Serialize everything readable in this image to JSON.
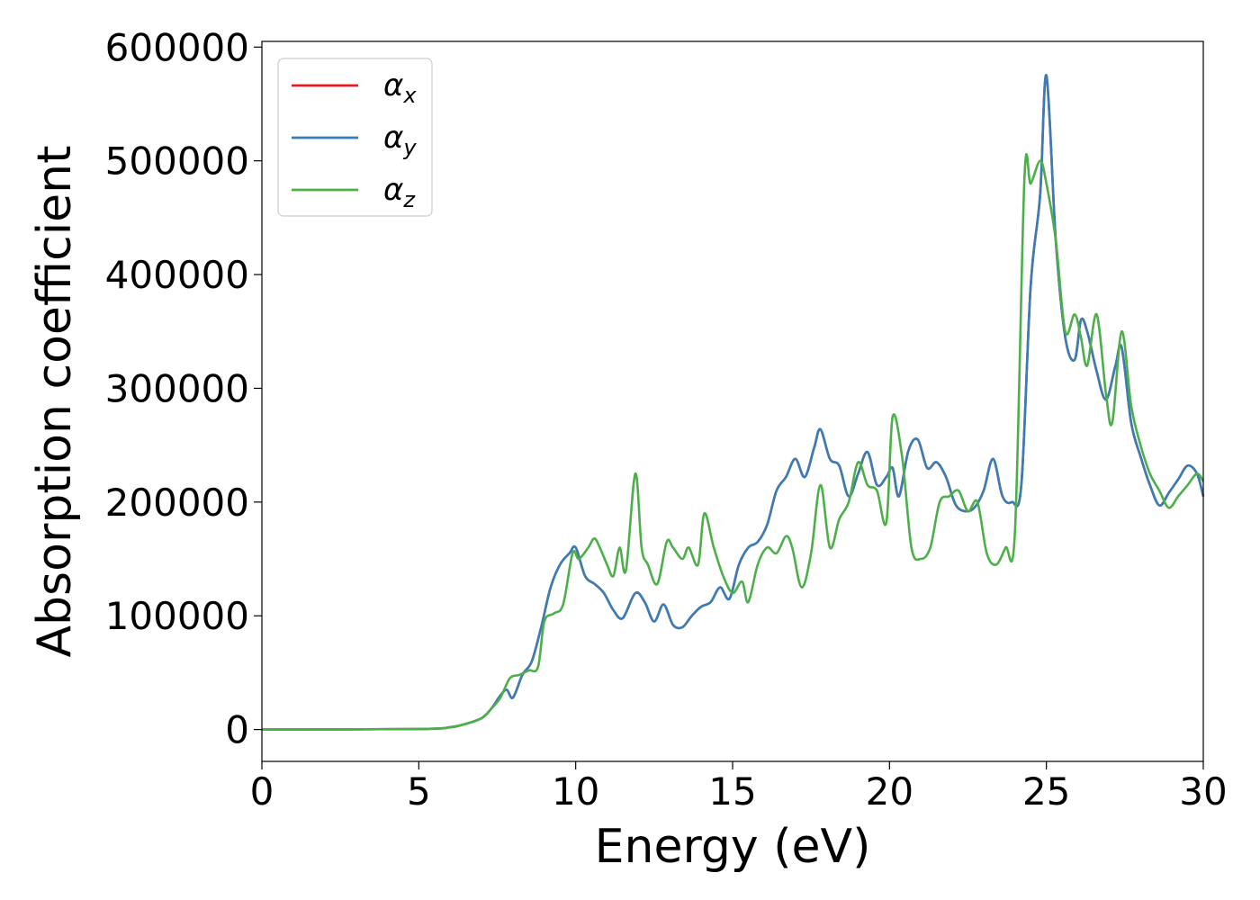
{
  "chart_data": {
    "type": "line",
    "xlabel": "Energy (eV)",
    "ylabel": "Absorption coefficient",
    "xlim": [
      0,
      30
    ],
    "ylim": [
      -28000,
      605000
    ],
    "xticks": [
      0,
      5,
      10,
      15,
      20,
      25,
      30
    ],
    "yticks": [
      0,
      100000,
      200000,
      300000,
      400000,
      500000,
      600000
    ],
    "grid": false,
    "legend_position": "top-left",
    "series": [
      {
        "name": "α_x",
        "legend_base": "α",
        "legend_sub": "x",
        "color": "#e41a1c",
        "x": [
          0,
          5,
          6,
          6.5,
          7,
          7.3,
          7.6,
          7.8,
          8.0,
          8.3,
          8.6,
          8.9,
          9.2,
          9.5,
          9.8,
          10.0,
          10.3,
          10.6,
          10.9,
          11.2,
          11.5,
          11.9,
          12.2,
          12.5,
          12.8,
          13.1,
          13.4,
          13.7,
          14.0,
          14.3,
          14.6,
          14.9,
          15.2,
          15.5,
          15.8,
          16.1,
          16.4,
          16.7,
          17.0,
          17.3,
          17.6,
          17.8,
          18.1,
          18.4,
          18.7,
          19.0,
          19.3,
          19.6,
          19.9,
          20.1,
          20.3,
          20.6,
          20.9,
          21.2,
          21.5,
          21.8,
          22.1,
          22.4,
          22.7,
          23.0,
          23.3,
          23.6,
          23.9,
          24.2,
          24.5,
          24.8,
          25.0,
          25.3,
          25.6,
          25.9,
          26.1,
          26.3,
          26.6,
          26.9,
          27.2,
          27.4,
          27.7,
          28.0,
          28.3,
          28.6,
          28.9,
          29.2,
          29.5,
          29.8,
          30.0
        ],
        "values": [
          0,
          500,
          2000,
          5000,
          10000,
          18000,
          30000,
          35000,
          28000,
          48000,
          60000,
          90000,
          125000,
          145000,
          155000,
          160000,
          135000,
          128000,
          120000,
          105000,
          98000,
          120000,
          112000,
          95000,
          110000,
          92000,
          90000,
          100000,
          108000,
          112000,
          125000,
          115000,
          145000,
          160000,
          165000,
          180000,
          210000,
          222000,
          238000,
          222000,
          248000,
          264000,
          238000,
          232000,
          205000,
          225000,
          244000,
          215000,
          222000,
          230000,
          205000,
          245000,
          255000,
          230000,
          235000,
          222000,
          198000,
          192000,
          195000,
          210000,
          238000,
          205000,
          200000,
          215000,
          390000,
          470000,
          575000,
          430000,
          345000,
          325000,
          360000,
          350000,
          315000,
          290000,
          320000,
          336000,
          270000,
          240000,
          215000,
          197000,
          208000,
          220000,
          232000,
          225000,
          205000
        ]
      },
      {
        "name": "α_y",
        "legend_base": "α",
        "legend_sub": "y",
        "color": "#377eb8",
        "x": [
          0,
          5,
          6,
          6.5,
          7,
          7.3,
          7.6,
          7.8,
          8.0,
          8.3,
          8.6,
          8.9,
          9.2,
          9.5,
          9.8,
          10.0,
          10.3,
          10.6,
          10.9,
          11.2,
          11.5,
          11.9,
          12.2,
          12.5,
          12.8,
          13.1,
          13.4,
          13.7,
          14.0,
          14.3,
          14.6,
          14.9,
          15.2,
          15.5,
          15.8,
          16.1,
          16.4,
          16.7,
          17.0,
          17.3,
          17.6,
          17.8,
          18.1,
          18.4,
          18.7,
          19.0,
          19.3,
          19.6,
          19.9,
          20.1,
          20.3,
          20.6,
          20.9,
          21.2,
          21.5,
          21.8,
          22.1,
          22.4,
          22.7,
          23.0,
          23.3,
          23.6,
          23.9,
          24.2,
          24.5,
          24.8,
          25.0,
          25.3,
          25.6,
          25.9,
          26.1,
          26.3,
          26.6,
          26.9,
          27.2,
          27.4,
          27.7,
          28.0,
          28.3,
          28.6,
          28.9,
          29.2,
          29.5,
          29.8,
          30.0
        ],
        "values": [
          0,
          500,
          2000,
          5000,
          10000,
          18000,
          30000,
          35000,
          28000,
          48000,
          60000,
          90000,
          125000,
          145000,
          155000,
          160000,
          135000,
          128000,
          120000,
          105000,
          98000,
          120000,
          112000,
          95000,
          110000,
          92000,
          90000,
          100000,
          108000,
          112000,
          125000,
          115000,
          145000,
          160000,
          165000,
          180000,
          210000,
          222000,
          238000,
          222000,
          248000,
          264000,
          238000,
          232000,
          205000,
          225000,
          244000,
          215000,
          222000,
          230000,
          205000,
          245000,
          255000,
          230000,
          235000,
          222000,
          198000,
          192000,
          195000,
          210000,
          238000,
          205000,
          200000,
          215000,
          390000,
          470000,
          575000,
          430000,
          345000,
          325000,
          360000,
          350000,
          315000,
          290000,
          320000,
          336000,
          270000,
          240000,
          215000,
          197000,
          208000,
          220000,
          232000,
          225000,
          205000
        ]
      },
      {
        "name": "α_z",
        "legend_base": "α",
        "legend_sub": "z",
        "color": "#4daf4a",
        "x": [
          0,
          5,
          6,
          6.5,
          7,
          7.3,
          7.6,
          7.9,
          8.2,
          8.5,
          8.8,
          9.0,
          9.3,
          9.6,
          9.9,
          10.1,
          10.4,
          10.6,
          10.8,
          11.0,
          11.2,
          11.4,
          11.6,
          11.9,
          12.1,
          12.3,
          12.6,
          12.9,
          13.1,
          13.4,
          13.6,
          13.9,
          14.1,
          14.4,
          14.7,
          15.0,
          15.3,
          15.5,
          15.8,
          16.1,
          16.4,
          16.7,
          16.9,
          17.2,
          17.5,
          17.8,
          18.1,
          18.4,
          18.7,
          19.0,
          19.3,
          19.6,
          19.9,
          20.1,
          20.4,
          20.7,
          21.0,
          21.3,
          21.6,
          21.9,
          22.2,
          22.5,
          22.8,
          23.1,
          23.4,
          23.7,
          24.0,
          24.3,
          24.5,
          24.8,
          25.0,
          25.3,
          25.6,
          25.9,
          26.1,
          26.3,
          26.6,
          26.9,
          27.1,
          27.4,
          27.7,
          28.0,
          28.3,
          28.6,
          28.9,
          29.2,
          29.5,
          29.8,
          30.0
        ],
        "values": [
          0,
          500,
          2000,
          5000,
          10000,
          18000,
          28000,
          45000,
          48000,
          52000,
          55000,
          95000,
          102000,
          110000,
          155000,
          150000,
          160000,
          168000,
          158000,
          145000,
          135000,
          160000,
          140000,
          225000,
          160000,
          145000,
          128000,
          165000,
          160000,
          150000,
          160000,
          145000,
          190000,
          160000,
          135000,
          120000,
          130000,
          112000,
          145000,
          160000,
          155000,
          170000,
          160000,
          125000,
          155000,
          215000,
          160000,
          185000,
          200000,
          235000,
          215000,
          210000,
          182000,
          275000,
          240000,
          160000,
          150000,
          160000,
          200000,
          205000,
          210000,
          192000,
          200000,
          155000,
          145000,
          160000,
          175000,
          485000,
          480000,
          500000,
          480000,
          430000,
          350000,
          365000,
          345000,
          320000,
          365000,
          295000,
          270000,
          350000,
          285000,
          250000,
          225000,
          210000,
          195000,
          205000,
          215000,
          225000,
          218000
        ]
      }
    ]
  }
}
